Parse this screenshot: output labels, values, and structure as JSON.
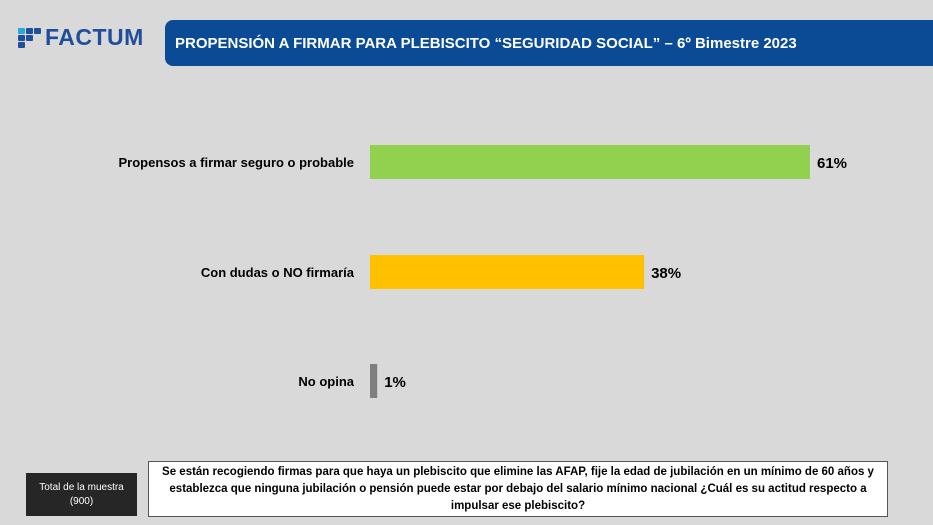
{
  "logo": {
    "text": "FACTUM"
  },
  "header": {
    "title": "PROPENSIÓN A FIRMAR PARA PLEBISCITO “SEGURIDAD SOCIAL” – 6º Bimestre 2023"
  },
  "footer": {
    "sample_label": "Total de la muestra",
    "sample_size": "(900)",
    "question": "Se están recogiendo firmas para que haya un plebiscito que elimine las AFAP, fije la edad de jubilación en un mínimo de 60 años y establezca que ninguna jubilación o pensión puede estar por debajo del salario mínimo nacional ¿Cuál es su actitud respecto a impulsar ese plebiscito?"
  },
  "chart_data": {
    "type": "bar",
    "orientation": "horizontal",
    "categories": [
      "Propensos a firmar seguro o probable",
      "Con dudas o NO firmaría",
      "No opina"
    ],
    "values": [
      61,
      38,
      1
    ],
    "labels": [
      "61%",
      "38%",
      "1%"
    ],
    "colors": [
      "#92d050",
      "#ffc000",
      "#7f7f7f"
    ],
    "xlim": [
      0,
      100
    ],
    "grid": false
  }
}
